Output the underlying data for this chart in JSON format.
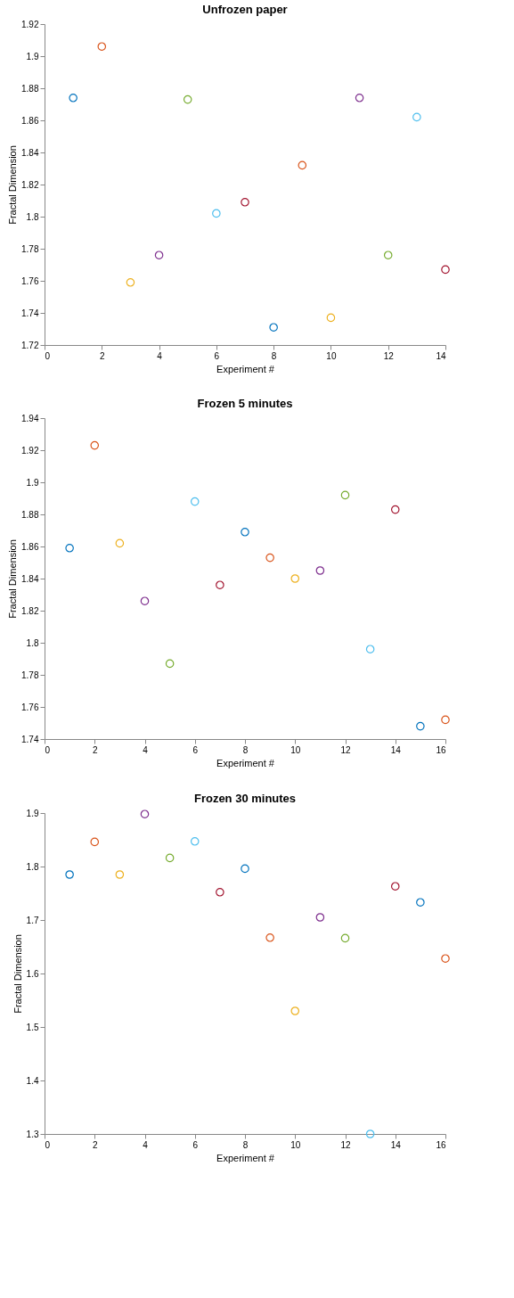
{
  "chart_data": [
    {
      "type": "scatter",
      "title": "Unfrozen paper",
      "xlabel": "Experiment #",
      "ylabel": "Fractal Dimension",
      "x": [
        1,
        2,
        3,
        4,
        5,
        6,
        7,
        8,
        9,
        10,
        11,
        12,
        13,
        14
      ],
      "series": [
        {
          "values": [
            1.874,
            1.906,
            1.759,
            1.776,
            1.873,
            1.802,
            1.809,
            1.731,
            1.832,
            1.737,
            1.874,
            1.776,
            1.862,
            1.767
          ],
          "colors": [
            "#0072bd",
            "#d95319",
            "#edb120",
            "#7e2f8e",
            "#77ac30",
            "#4dbeee",
            "#a2142f",
            "#0072bd",
            "#d95319",
            "#edb120",
            "#7e2f8e",
            "#77ac30",
            "#4dbeee",
            "#a2142f"
          ]
        }
      ],
      "xlim": [
        0,
        14
      ],
      "xticks": [
        0,
        2,
        4,
        6,
        8,
        10,
        12,
        14
      ],
      "ylim": [
        1.72,
        1.92
      ],
      "yticks": [
        1.72,
        1.74,
        1.76,
        1.78,
        1.8,
        1.82,
        1.84,
        1.86,
        1.88,
        1.9,
        1.92
      ],
      "marker": "circle",
      "grid": false,
      "legend": false
    },
    {
      "type": "scatter",
      "title": "Frozen 5 minutes",
      "xlabel": "Experiment #",
      "ylabel": "Fractal Dimension",
      "x": [
        1,
        2,
        3,
        4,
        5,
        6,
        7,
        8,
        9,
        10,
        11,
        12,
        13,
        14,
        15,
        16
      ],
      "series": [
        {
          "values": [
            1.859,
            1.923,
            1.862,
            1.826,
            1.787,
            1.888,
            1.836,
            1.869,
            1.853,
            1.84,
            1.845,
            1.892,
            1.796,
            1.883,
            1.748,
            1.752
          ],
          "colors": [
            "#0072bd",
            "#d95319",
            "#edb120",
            "#7e2f8e",
            "#77ac30",
            "#4dbeee",
            "#a2142f",
            "#0072bd",
            "#d95319",
            "#edb120",
            "#7e2f8e",
            "#77ac30",
            "#4dbeee",
            "#a2142f",
            "#0072bd",
            "#d95319"
          ]
        }
      ],
      "xlim": [
        0,
        16
      ],
      "xticks": [
        0,
        2,
        4,
        6,
        8,
        10,
        12,
        14,
        16
      ],
      "ylim": [
        1.74,
        1.94
      ],
      "yticks": [
        1.74,
        1.76,
        1.78,
        1.8,
        1.82,
        1.84,
        1.86,
        1.88,
        1.9,
        1.92,
        1.94
      ],
      "marker": "circle",
      "grid": false,
      "legend": false
    },
    {
      "type": "scatter",
      "title": "Frozen 30 minutes",
      "xlabel": "Experiment #",
      "ylabel": "Fractal Dimension",
      "x": [
        1,
        2,
        3,
        4,
        5,
        6,
        7,
        8,
        9,
        10,
        11,
        12,
        13,
        14,
        15,
        16
      ],
      "series": [
        {
          "values": [
            1.785,
            1.846,
            1.785,
            1.898,
            1.816,
            1.847,
            1.752,
            1.796,
            1.667,
            1.53,
            1.705,
            1.666,
            1.3,
            1.763,
            1.733,
            1.628
          ],
          "colors": [
            "#0072bd",
            "#d95319",
            "#edb120",
            "#7e2f8e",
            "#77ac30",
            "#4dbeee",
            "#a2142f",
            "#0072bd",
            "#d95319",
            "#edb120",
            "#7e2f8e",
            "#77ac30",
            "#4dbeee",
            "#a2142f",
            "#0072bd",
            "#d95319"
          ]
        }
      ],
      "xlim": [
        0,
        16
      ],
      "xticks": [
        0,
        2,
        4,
        6,
        8,
        10,
        12,
        14,
        16
      ],
      "ylim": [
        1.3,
        1.9
      ],
      "yticks": [
        1.3,
        1.4,
        1.5,
        1.6,
        1.7,
        1.8,
        1.9
      ],
      "marker": "circle",
      "grid": false,
      "legend": false
    }
  ]
}
